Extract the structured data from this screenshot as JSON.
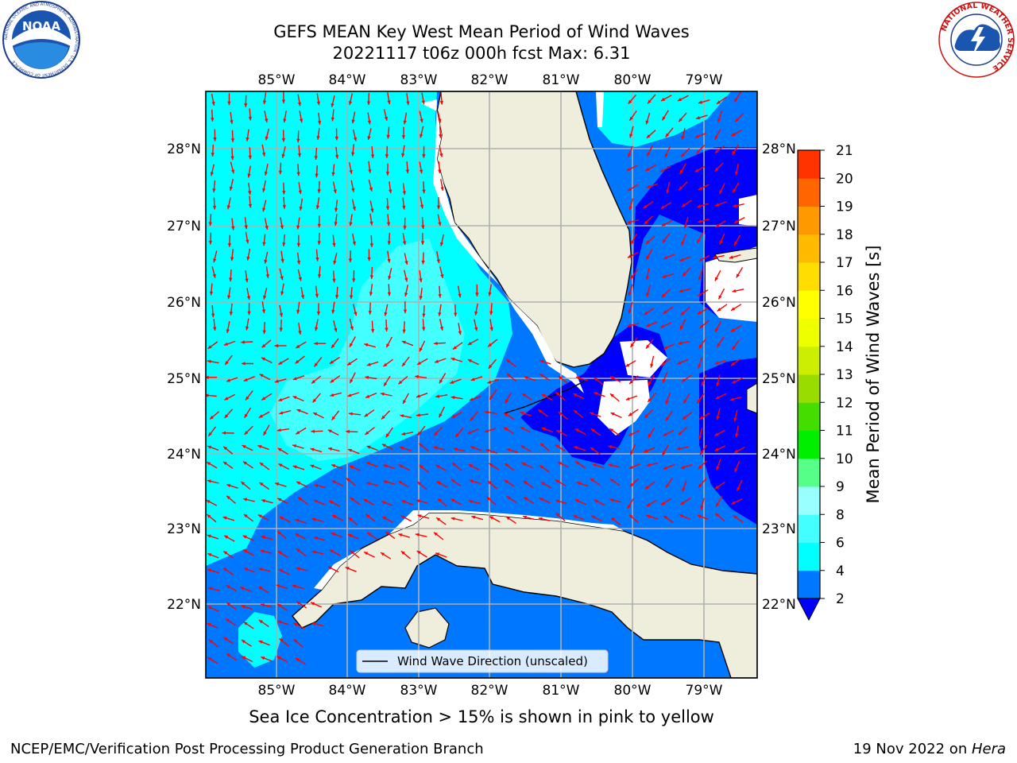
{
  "header": {
    "title_line1": "GEFS MEAN Key West Mean Period of Wind Waves",
    "title_line2": "20221117 t06z 000h fcst   Max: 6.31"
  },
  "logos": {
    "left": "NOAA",
    "left_ring_text": "NATIONAL OCEANIC AND ATMOSPHERIC ADMINISTRATION · U.S. DEPARTMENT OF COMMERCE",
    "right_ring_text": "NATIONAL WEATHER SERVICE"
  },
  "map": {
    "lon_ticks": [
      "85°W",
      "84°W",
      "83°W",
      "82°W",
      "81°W",
      "80°W",
      "79°W"
    ],
    "lat_ticks": [
      "28°N",
      "27°N",
      "26°N",
      "25°N",
      "24°N",
      "23°N",
      "22°N"
    ],
    "lon_range": [
      -86.0,
      -78.3
    ],
    "lat_range": [
      21.1,
      28.8
    ],
    "legend_label": "Wind Wave Direction (unscaled)",
    "arrow_color": "#ff0000",
    "land_color": "#efeedc"
  },
  "colorbar": {
    "label": "Mean Period of Wind Waves [s]",
    "ticks": [
      "2",
      "4",
      "6",
      "8",
      "9",
      "10",
      "11",
      "12",
      "13",
      "14",
      "15",
      "16",
      "17",
      "18",
      "19",
      "20",
      "21"
    ],
    "colors": [
      "#0077ff",
      "#00ffff",
      "#44ffff",
      "#99ffff",
      "#55ff88",
      "#00ee00",
      "#44dd00",
      "#99dd00",
      "#ccee00",
      "#eeff00",
      "#ffff00",
      "#ffdd00",
      "#ffbb00",
      "#ff9900",
      "#ff6600",
      "#ff3300"
    ],
    "under_color": "#0000ff"
  },
  "caption": "Sea Ice Concentration > 15% is shown in pink to yellow",
  "footer": {
    "left": "NCEP/EMC/Verification Post Processing Product Generation Branch",
    "date": "19 Nov 2022 on ",
    "host": "Hera"
  }
}
